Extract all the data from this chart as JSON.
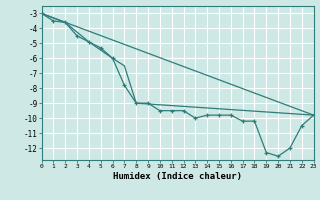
{
  "xlabel": "Humidex (Indice chaleur)",
  "background_color": "#cde8e5",
  "grid_color": "#ffffff",
  "line_color": "#2e7d7a",
  "x_min": 0,
  "x_max": 23,
  "y_min": -12.8,
  "y_max": -2.5,
  "yticks": [
    -3,
    -4,
    -5,
    -6,
    -7,
    -8,
    -9,
    -10,
    -11,
    -12
  ],
  "series_main": [
    [
      0,
      -3.0
    ],
    [
      1,
      -3.5
    ],
    [
      2,
      -3.6
    ],
    [
      3,
      -4.5
    ],
    [
      4,
      -4.9
    ],
    [
      5,
      -5.3
    ],
    [
      6,
      -6.0
    ],
    [
      7,
      -7.8
    ],
    [
      8,
      -9.0
    ],
    [
      9,
      -9.0
    ],
    [
      10,
      -9.5
    ],
    [
      11,
      -9.5
    ],
    [
      12,
      -9.5
    ],
    [
      13,
      -10.0
    ],
    [
      14,
      -9.8
    ],
    [
      15,
      -9.8
    ],
    [
      16,
      -9.8
    ],
    [
      17,
      -10.2
    ],
    [
      18,
      -10.2
    ],
    [
      19,
      -12.3
    ],
    [
      20,
      -12.55
    ],
    [
      21,
      -12.0
    ],
    [
      22,
      -10.5
    ],
    [
      23,
      -9.8
    ]
  ],
  "series_line1": [
    [
      0,
      -3.0
    ],
    [
      23,
      -9.8
    ]
  ],
  "series_line2": [
    [
      0,
      -3.0
    ],
    [
      2,
      -3.6
    ],
    [
      4,
      -4.9
    ],
    [
      6,
      -6.0
    ],
    [
      7,
      -6.5
    ],
    [
      8,
      -9.0
    ],
    [
      23,
      -9.8
    ]
  ]
}
